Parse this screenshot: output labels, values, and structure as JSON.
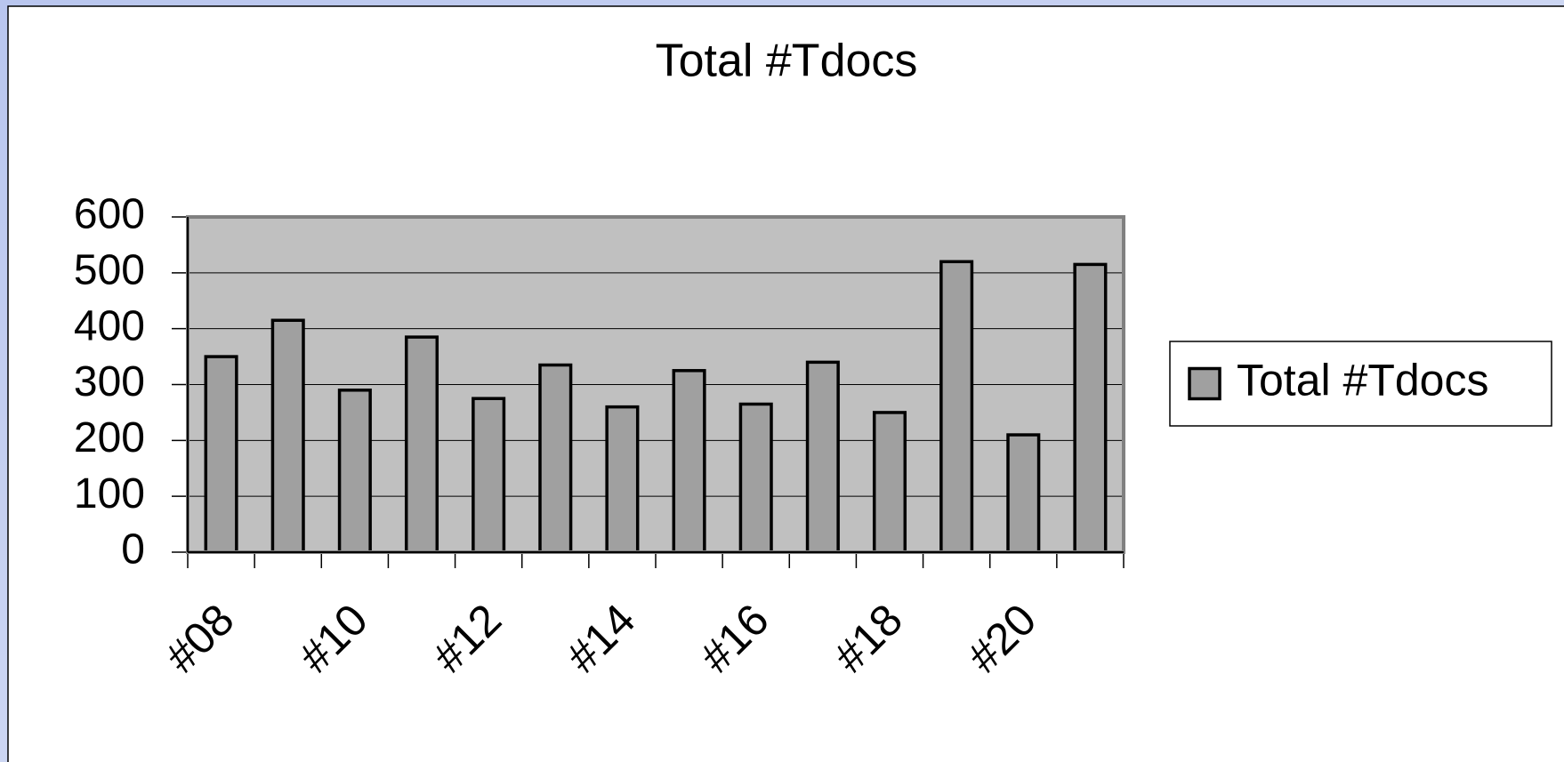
{
  "chart_data": {
    "type": "bar",
    "title": "Total #Tdocs",
    "categories": [
      "#08",
      null,
      "#10",
      null,
      "#12",
      null,
      "#14",
      null,
      "#16",
      null,
      "#18",
      null,
      "#20",
      null
    ],
    "series": [
      {
        "name": "Total #Tdocs",
        "color": "#a0a0a0",
        "values": [
          350,
          415,
          290,
          385,
          275,
          335,
          260,
          325,
          265,
          340,
          250,
          520,
          210,
          515
        ]
      }
    ],
    "ylim": [
      0,
      600
    ],
    "yticks": [
      0,
      100,
      200,
      300,
      400,
      500,
      600
    ],
    "grid": true,
    "legend": "right"
  }
}
